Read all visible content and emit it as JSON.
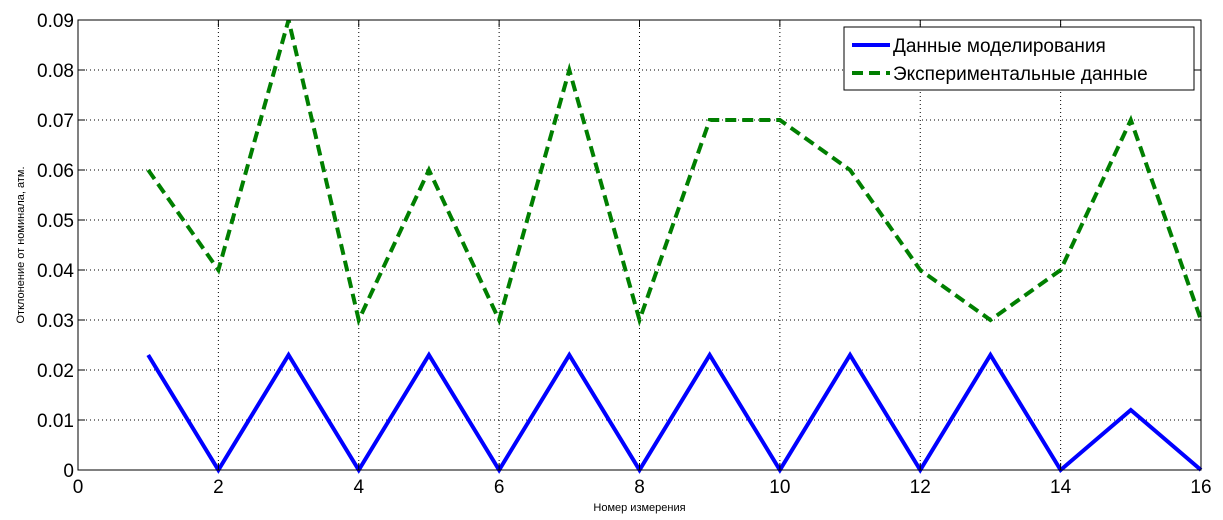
{
  "chart_data": {
    "type": "line",
    "title": "",
    "xlabel": "Номер измерения",
    "ylabel": "Отклонение от номинала, атм.",
    "xlim": [
      0,
      16
    ],
    "ylim": [
      0,
      0.09
    ],
    "xticks": [
      0,
      2,
      4,
      6,
      8,
      10,
      12,
      14,
      16
    ],
    "xtick_labels": [
      "0",
      "2",
      "4",
      "6",
      "8",
      "10",
      "12",
      "14",
      "16"
    ],
    "yticks": [
      0,
      0.01,
      0.02,
      0.03,
      0.04,
      0.05,
      0.06,
      0.07,
      0.08,
      0.09
    ],
    "ytick_labels": [
      "0",
      "0.01",
      "0.02",
      "0.03",
      "0.04",
      "0.05",
      "0.06",
      "0.07",
      "0.08",
      "0.09"
    ],
    "grid": true,
    "legend_position": "top-right",
    "x": [
      1,
      2,
      3,
      4,
      5,
      6,
      7,
      8,
      9,
      10,
      11,
      12,
      13,
      14,
      15,
      16
    ],
    "series": [
      {
        "name": "Данные моделирования",
        "color": "#0000ff",
        "style": "solid",
        "values": [
          0.023,
          0,
          0.023,
          0,
          0.023,
          0,
          0.023,
          0,
          0.023,
          0,
          0.023,
          0,
          0.023,
          0,
          0.012,
          0
        ]
      },
      {
        "name": "Экспериментальные данные",
        "color": "#007f00",
        "style": "dashed",
        "values": [
          0.06,
          0.04,
          0.09,
          0.03,
          0.06,
          0.03,
          0.08,
          0.03,
          0.07,
          0.07,
          0.06,
          0.04,
          0.03,
          0.04,
          0.07,
          0.03
        ]
      }
    ]
  }
}
